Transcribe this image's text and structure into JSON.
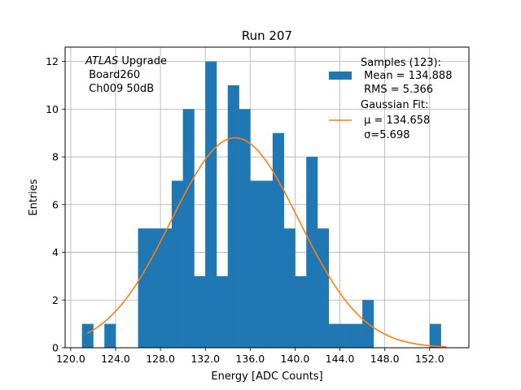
{
  "chart_data": {
    "type": "bar",
    "title": "Run 207",
    "xlabel": "Energy [ADC Counts]",
    "ylabel": "Entries",
    "xlim": [
      119.5,
      155.5
    ],
    "ylim": [
      0,
      12.6
    ],
    "xticks": [
      "120.0",
      "124.0",
      "128.0",
      "132.0",
      "136.0",
      "140.0",
      "144.0",
      "148.0",
      "152.0"
    ],
    "yticks": [
      "0",
      "2",
      "4",
      "6",
      "8",
      "10",
      "12"
    ],
    "grid": true,
    "bin_width": 1,
    "bins": [
      {
        "x": 121.5,
        "count": 1
      },
      {
        "x": 123.5,
        "count": 1
      },
      {
        "x": 126.5,
        "count": 5
      },
      {
        "x": 127.5,
        "count": 5
      },
      {
        "x": 128.5,
        "count": 5
      },
      {
        "x": 129.5,
        "count": 7
      },
      {
        "x": 130.5,
        "count": 10
      },
      {
        "x": 131.5,
        "count": 3
      },
      {
        "x": 132.5,
        "count": 12
      },
      {
        "x": 133.5,
        "count": 3
      },
      {
        "x": 134.5,
        "count": 11
      },
      {
        "x": 135.5,
        "count": 10
      },
      {
        "x": 136.5,
        "count": 7
      },
      {
        "x": 137.5,
        "count": 7
      },
      {
        "x": 138.5,
        "count": 9
      },
      {
        "x": 139.5,
        "count": 5
      },
      {
        "x": 140.5,
        "count": 3
      },
      {
        "x": 141.5,
        "count": 8
      },
      {
        "x": 142.5,
        "count": 5
      },
      {
        "x": 143.5,
        "count": 1
      },
      {
        "x": 144.5,
        "count": 1
      },
      {
        "x": 145.5,
        "count": 1
      },
      {
        "x": 146.5,
        "count": 2
      },
      {
        "x": 152.5,
        "count": 1
      }
    ],
    "fit": {
      "amplitude": 8.8,
      "mu": 134.658,
      "sigma": 5.698,
      "x_range": [
        121.5,
        153.5
      ]
    },
    "annotation": {
      "italic": "ATLAS",
      "line1_rest": " Upgrade",
      "line2": " Board260",
      "line3": " Ch009 50dB"
    },
    "legend": {
      "placement": "top-right",
      "samples": {
        "line1": "Samples (123):",
        "line2": " Mean = 134.888",
        "line3": " RMS = 5.366"
      },
      "fit": {
        "line1": "Gaussian Fit:",
        "mu_line": " μ = 134.658",
        "sigma_line": " σ=5.698"
      }
    },
    "colors": {
      "bars": "#1f77b4",
      "fit_line": "#ff7f0e",
      "grid": "#b0b0b0"
    }
  }
}
